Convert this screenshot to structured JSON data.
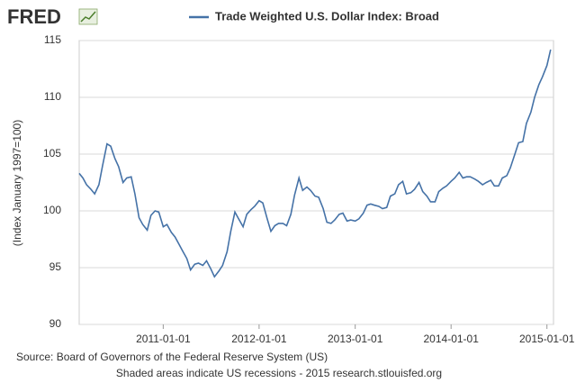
{
  "chart_data": {
    "type": "line",
    "logo": "FRED",
    "y_label": "(Index January 1997=100)",
    "source": "Source: Board of Governors of the Federal Reserve System (US)",
    "note": "Shaded areas indicate US recessions - 2015 research.stlouisfed.org",
    "x": [
      "2010-02-15",
      "2010-03-01",
      "2010-03-15",
      "2010-04-01",
      "2010-04-15",
      "2010-05-01",
      "2010-05-15",
      "2010-06-01",
      "2010-06-15",
      "2010-07-01",
      "2010-07-15",
      "2010-08-01",
      "2010-08-15",
      "2010-09-01",
      "2010-09-15",
      "2010-10-01",
      "2010-10-15",
      "2010-11-01",
      "2010-11-15",
      "2010-12-01",
      "2010-12-15",
      "2011-01-01",
      "2011-01-15",
      "2011-02-01",
      "2011-02-15",
      "2011-03-01",
      "2011-03-15",
      "2011-04-01",
      "2011-04-15",
      "2011-05-01",
      "2011-05-15",
      "2011-06-01",
      "2011-06-15",
      "2011-07-01",
      "2011-07-15",
      "2011-08-01",
      "2011-08-15",
      "2011-09-01",
      "2011-09-15",
      "2011-10-01",
      "2011-10-15",
      "2011-11-01",
      "2011-11-15",
      "2011-12-01",
      "2011-12-15",
      "2012-01-01",
      "2012-01-15",
      "2012-02-01",
      "2012-02-15",
      "2012-03-01",
      "2012-03-15",
      "2012-04-01",
      "2012-04-15",
      "2012-05-01",
      "2012-05-15",
      "2012-06-01",
      "2012-06-15",
      "2012-07-01",
      "2012-07-15",
      "2012-08-01",
      "2012-08-15",
      "2012-09-01",
      "2012-09-15",
      "2012-10-01",
      "2012-10-15",
      "2012-11-01",
      "2012-11-15",
      "2012-12-01",
      "2012-12-15",
      "2013-01-01",
      "2013-01-15",
      "2013-02-01",
      "2013-02-15",
      "2013-03-01",
      "2013-03-15",
      "2013-04-01",
      "2013-04-15",
      "2013-05-01",
      "2013-05-15",
      "2013-06-01",
      "2013-06-15",
      "2013-07-01",
      "2013-07-15",
      "2013-08-01",
      "2013-08-15",
      "2013-09-01",
      "2013-09-15",
      "2013-10-01",
      "2013-10-15",
      "2013-11-01",
      "2013-11-15",
      "2013-12-01",
      "2013-12-15",
      "2014-01-01",
      "2014-01-15",
      "2014-02-01",
      "2014-02-15",
      "2014-03-01",
      "2014-03-15",
      "2014-04-01",
      "2014-04-15",
      "2014-05-01",
      "2014-05-15",
      "2014-06-01",
      "2014-06-15",
      "2014-07-01",
      "2014-07-15",
      "2014-08-01",
      "2014-08-15",
      "2014-09-01",
      "2014-09-15",
      "2014-10-01",
      "2014-10-15",
      "2014-11-01",
      "2014-11-15",
      "2014-12-01",
      "2014-12-15",
      "2015-01-01",
      "2015-01-15"
    ],
    "series": [
      {
        "name": "Trade Weighted U.S. Dollar Index: Broad",
        "color": "#4572a7",
        "values": [
          103.3,
          102.9,
          102.3,
          101.9,
          101.5,
          102.3,
          104.0,
          105.9,
          105.7,
          104.6,
          103.9,
          102.5,
          102.9,
          103.0,
          101.5,
          99.4,
          98.8,
          98.3,
          99.6,
          100.0,
          99.9,
          98.6,
          98.8,
          98.1,
          97.7,
          97.1,
          96.5,
          95.8,
          94.8,
          95.3,
          95.4,
          95.2,
          95.6,
          94.9,
          94.2,
          94.7,
          95.2,
          96.4,
          98.2,
          99.9,
          99.3,
          98.6,
          99.7,
          100.1,
          100.4,
          100.9,
          100.7,
          99.3,
          98.2,
          98.7,
          98.9,
          98.9,
          98.7,
          99.7,
          101.4,
          102.9,
          101.8,
          102.1,
          101.8,
          101.3,
          101.2,
          100.2,
          99.0,
          98.9,
          99.2,
          99.7,
          99.8,
          99.1,
          99.2,
          99.1,
          99.3,
          99.8,
          100.5,
          100.6,
          100.5,
          100.4,
          100.2,
          100.3,
          101.3,
          101.5,
          102.3,
          102.6,
          101.5,
          101.6,
          101.9,
          102.5,
          101.7,
          101.3,
          100.8,
          100.8,
          101.7,
          102.0,
          102.2,
          102.6,
          102.9,
          103.4,
          102.9,
          103.0,
          103.0,
          102.8,
          102.6,
          102.3,
          102.5,
          102.7,
          102.2,
          102.2,
          102.9,
          103.1,
          103.8,
          105.0,
          106.0,
          106.1,
          107.7,
          108.7,
          110.0,
          111.1,
          111.8,
          112.8,
          114.2
        ]
      }
    ],
    "xlim": [
      "2010-02-15",
      "2015-01-26"
    ],
    "xticks": [
      "2011-01-01",
      "2012-01-01",
      "2013-01-01",
      "2014-01-01",
      "2015-01-01"
    ],
    "ylim": [
      90,
      115
    ],
    "yticks": [
      90,
      95,
      100,
      105,
      110,
      115
    ],
    "grid": true
  }
}
